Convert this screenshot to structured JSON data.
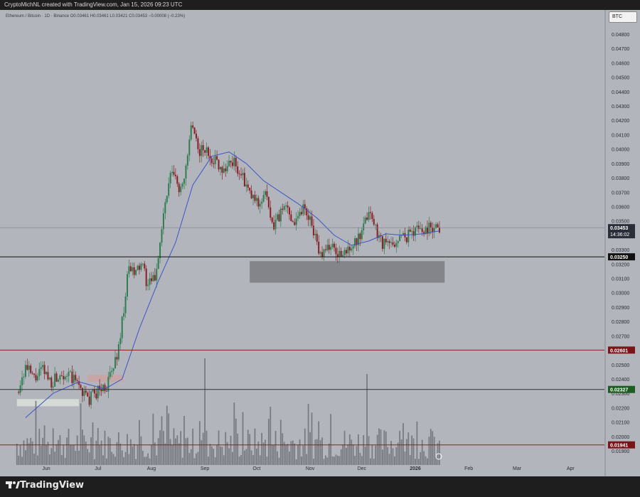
{
  "header": {
    "attribution": "CryptoMichNL created with TradingView.com, Jan 15, 2026 09:23 UTC"
  },
  "legend": {
    "symbol": "Ethereum / Bitcoin · 1D · Binance",
    "values": "O0.03461 H0.03461 L0.03421 C0.03453 −0.00008 (−0.23%)"
  },
  "currency_tag": "BTC",
  "footer": {
    "brand": "TradingView"
  },
  "colors": {
    "background": "#b3b5bd",
    "up_candle": "#2e7d4f",
    "down_candle": "#8b1e22",
    "ma_line": "#3b55c9",
    "volume": "#6f7178",
    "resistance_red": "#8b1e22",
    "support_green": "#1b5e20"
  },
  "chart_data": {
    "type": "candlestick",
    "title": "",
    "y_axis": {
      "range": [
        0.0185,
        0.0495
      ],
      "ticks": [
        "0.04800",
        "0.04700",
        "0.04600",
        "0.04500",
        "0.04400",
        "0.04300",
        "0.04200",
        "0.04100",
        "0.04000",
        "0.03900",
        "0.03800",
        "0.03700",
        "0.03600",
        "0.03500",
        "0.03400",
        "0.03300",
        "0.03200",
        "0.03100",
        "0.03000",
        "0.02900",
        "0.02800",
        "0.02700",
        "0.02600",
        "0.02500",
        "0.02400",
        "0.02300",
        "0.02200",
        "0.02100",
        "0.02000",
        "0.01900"
      ]
    },
    "x_axis": {
      "labels": [
        "Jun",
        "Jul",
        "Aug",
        "Sep",
        "Oct",
        "Nov",
        "Dec",
        "2026",
        "Feb",
        "Mar",
        "Apr"
      ],
      "label_months": [
        "2025-06",
        "2025-07",
        "2025-08",
        "2025-09",
        "2025-10",
        "2025-11",
        "2025-12",
        "2026-01",
        "2026-02",
        "2026-03",
        "2026-04"
      ]
    },
    "close_path": [
      [
        "2025-05-15",
        0.0231
      ],
      [
        "2025-05-20",
        0.0248
      ],
      [
        "2025-05-25",
        0.024
      ],
      [
        "2025-05-30",
        0.0246
      ],
      [
        "2025-06-04",
        0.0238
      ],
      [
        "2025-06-10",
        0.0245
      ],
      [
        "2025-06-15",
        0.0241
      ],
      [
        "2025-06-20",
        0.0236
      ],
      [
        "2025-06-25",
        0.0225
      ],
      [
        "2025-07-01",
        0.0232
      ],
      [
        "2025-07-06",
        0.0235
      ],
      [
        "2025-07-10",
        0.0248
      ],
      [
        "2025-07-13",
        0.0262
      ],
      [
        "2025-07-16",
        0.029
      ],
      [
        "2025-07-19",
        0.0318
      ],
      [
        "2025-07-22",
        0.0312
      ],
      [
        "2025-07-26",
        0.032
      ],
      [
        "2025-07-30",
        0.0305
      ],
      [
        "2025-08-03",
        0.031
      ],
      [
        "2025-08-06",
        0.0335
      ],
      [
        "2025-08-09",
        0.0362
      ],
      [
        "2025-08-13",
        0.0385
      ],
      [
        "2025-08-17",
        0.0372
      ],
      [
        "2025-08-21",
        0.0385
      ],
      [
        "2025-08-24",
        0.0415
      ],
      [
        "2025-08-28",
        0.04
      ],
      [
        "2025-09-02",
        0.0398
      ],
      [
        "2025-09-07",
        0.0392
      ],
      [
        "2025-09-12",
        0.0386
      ],
      [
        "2025-09-17",
        0.0392
      ],
      [
        "2025-09-22",
        0.0382
      ],
      [
        "2025-09-27",
        0.0368
      ],
      [
        "2025-10-02",
        0.0362
      ],
      [
        "2025-10-06",
        0.037
      ],
      [
        "2025-10-10",
        0.0345
      ],
      [
        "2025-10-13",
        0.0352
      ],
      [
        "2025-10-18",
        0.036
      ],
      [
        "2025-10-23",
        0.035
      ],
      [
        "2025-10-28",
        0.036
      ],
      [
        "2025-11-02",
        0.035
      ],
      [
        "2025-11-06",
        0.0325
      ],
      [
        "2025-11-10",
        0.0333
      ],
      [
        "2025-11-15",
        0.033
      ],
      [
        "2025-11-20",
        0.0325
      ],
      [
        "2025-11-24",
        0.0333
      ],
      [
        "2025-11-28",
        0.0335
      ],
      [
        "2025-12-01",
        0.034
      ],
      [
        "2025-12-05",
        0.0358
      ],
      [
        "2025-12-09",
        0.0345
      ],
      [
        "2025-12-13",
        0.0335
      ],
      [
        "2025-12-18",
        0.0333
      ],
      [
        "2025-12-23",
        0.0338
      ],
      [
        "2025-12-28",
        0.034
      ],
      [
        "2026-01-02",
        0.0346
      ],
      [
        "2026-01-06",
        0.0343
      ],
      [
        "2026-01-10",
        0.0347
      ],
      [
        "2026-01-15",
        0.03453
      ]
    ],
    "moving_average_path": [
      [
        "2025-05-20",
        0.0213
      ],
      [
        "2025-06-05",
        0.023
      ],
      [
        "2025-06-20",
        0.0238
      ],
      [
        "2025-07-05",
        0.0233
      ],
      [
        "2025-07-15",
        0.024
      ],
      [
        "2025-07-25",
        0.0275
      ],
      [
        "2025-08-05",
        0.0308
      ],
      [
        "2025-08-15",
        0.0335
      ],
      [
        "2025-08-25",
        0.0375
      ],
      [
        "2025-09-05",
        0.0395
      ],
      [
        "2025-09-15",
        0.0398
      ],
      [
        "2025-09-25",
        0.039
      ],
      [
        "2025-10-05",
        0.0378
      ],
      [
        "2025-10-15",
        0.037
      ],
      [
        "2025-10-25",
        0.0362
      ],
      [
        "2025-11-05",
        0.0352
      ],
      [
        "2025-11-15",
        0.034
      ],
      [
        "2025-11-25",
        0.0333
      ],
      [
        "2025-12-05",
        0.0336
      ],
      [
        "2025-12-15",
        0.0341
      ],
      [
        "2025-12-25",
        0.034
      ],
      [
        "2026-01-05",
        0.0341
      ],
      [
        "2026-01-15",
        0.0343
      ]
    ],
    "horizontal_levels": [
      {
        "label": "0.03453",
        "price": 0.03453,
        "tag_bg": "#2a2e39",
        "tag_fg": "#ffffff",
        "line": "#7d818a",
        "countdown": "14:36:02"
      },
      {
        "label": "0.03250",
        "price": 0.0325,
        "tag_bg": "#111111",
        "tag_fg": "#ffffff",
        "line": "#111111"
      },
      {
        "label": "0.02601",
        "price": 0.02601,
        "tag_bg": "#7a1419",
        "tag_fg": "#ffffff",
        "line": "#8b1e22"
      },
      {
        "label": "0.02327",
        "price": 0.02327,
        "tag_bg": "#1b5e20",
        "tag_fg": "#ffffff",
        "line": "#333333"
      },
      {
        "label": "0.01941",
        "price": 0.01941,
        "tag_bg": "#7a1419",
        "tag_fg": "#ffffff",
        "line": "#8b1e22"
      }
    ],
    "zones": [
      {
        "from": "2025-09-27",
        "to": "2026-01-18",
        "low": 0.0307,
        "high": 0.0322,
        "color": "#83858b"
      },
      {
        "from": "2025-05-15",
        "to": "2025-06-20",
        "low": 0.0221,
        "high": 0.0226,
        "color": "#d4dbd4"
      },
      {
        "from": "2025-06-25",
        "to": "2025-07-16",
        "low": 0.0238,
        "high": 0.0243,
        "color": "#c7a6a8"
      }
    ]
  }
}
